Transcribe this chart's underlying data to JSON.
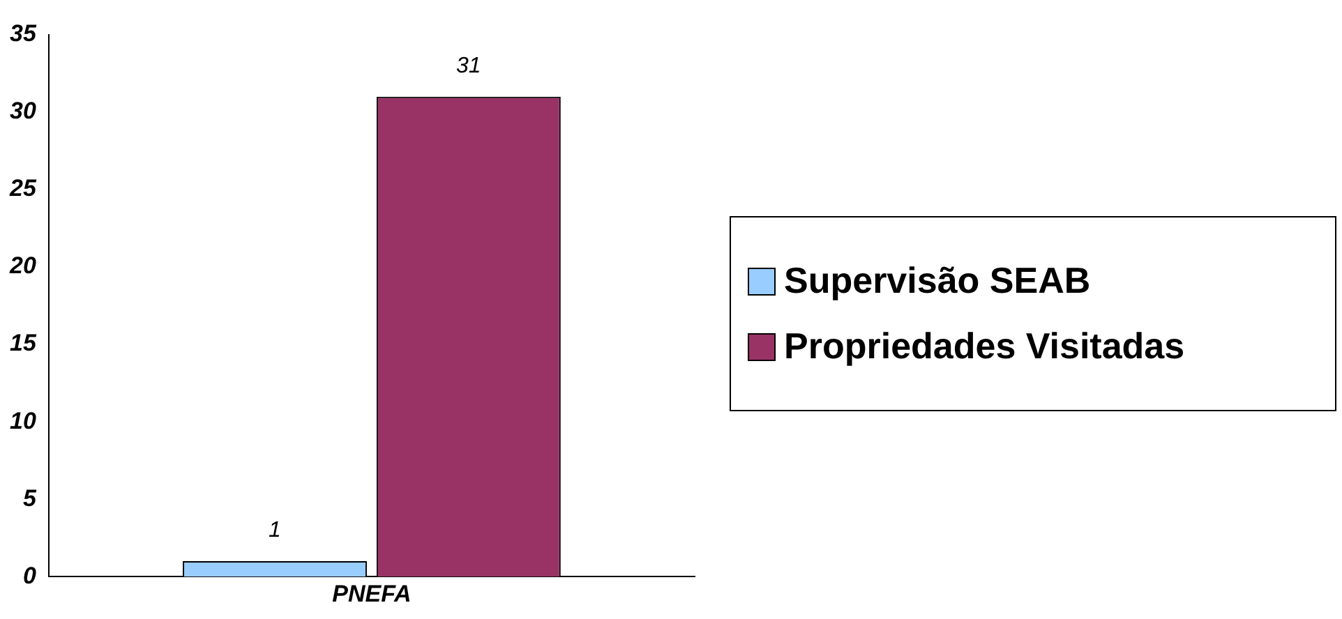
{
  "chart_data": {
    "type": "bar",
    "categories": [
      "PNEFA"
    ],
    "series": [
      {
        "name": "Supervisão SEAB",
        "color": "#99ccff",
        "values": [
          1
        ]
      },
      {
        "name": "Propriedades Visitadas",
        "color": "#993366",
        "values": [
          31
        ]
      }
    ],
    "ylim": [
      0,
      35
    ],
    "yticks": [
      0,
      5,
      10,
      15,
      20,
      25,
      30,
      35
    ],
    "grid": false,
    "legend": "right",
    "data_labels": true
  }
}
